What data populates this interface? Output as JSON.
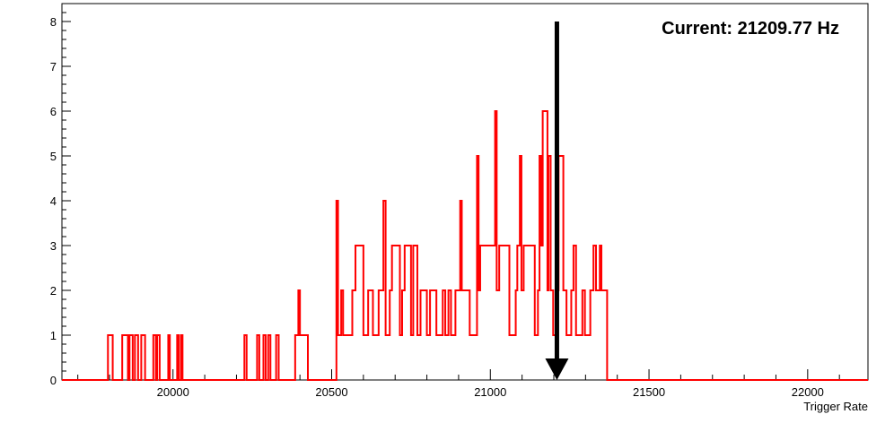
{
  "chart_data": {
    "type": "line",
    "title": "",
    "xlabel": "Trigger Rate",
    "ylabel": "",
    "xlim": [
      19650,
      22190
    ],
    "ylim": [
      0,
      8.4
    ],
    "x_ticks": [
      20000,
      20500,
      21000,
      21500,
      22000
    ],
    "y_ticks": [
      0,
      1,
      2,
      3,
      4,
      5,
      6,
      7,
      8
    ],
    "grid": false,
    "legend": "none",
    "series": [
      {
        "color": "#ff0000",
        "points": [
          [
            19650,
            0
          ],
          [
            19795,
            0
          ],
          [
            19795,
            1
          ],
          [
            19810,
            1
          ],
          [
            19810,
            0
          ],
          [
            19840,
            0
          ],
          [
            19840,
            1
          ],
          [
            19858,
            1
          ],
          [
            19858,
            0
          ],
          [
            19863,
            0
          ],
          [
            19863,
            1
          ],
          [
            19873,
            1
          ],
          [
            19873,
            0
          ],
          [
            19880,
            0
          ],
          [
            19880,
            1
          ],
          [
            19890,
            1
          ],
          [
            19890,
            0
          ],
          [
            19900,
            0
          ],
          [
            19900,
            1
          ],
          [
            19912,
            1
          ],
          [
            19912,
            0
          ],
          [
            19938,
            0
          ],
          [
            19938,
            1
          ],
          [
            19946,
            1
          ],
          [
            19946,
            0
          ],
          [
            19950,
            0
          ],
          [
            19950,
            1
          ],
          [
            19958,
            1
          ],
          [
            19958,
            0
          ],
          [
            19985,
            0
          ],
          [
            19985,
            1
          ],
          [
            19990,
            1
          ],
          [
            19990,
            0
          ],
          [
            20013,
            0
          ],
          [
            20013,
            1
          ],
          [
            20018,
            1
          ],
          [
            20018,
            0
          ],
          [
            20025,
            0
          ],
          [
            20025,
            1
          ],
          [
            20030,
            1
          ],
          [
            20030,
            0
          ],
          [
            20225,
            0
          ],
          [
            20225,
            1
          ],
          [
            20232,
            1
          ],
          [
            20232,
            0
          ],
          [
            20265,
            0
          ],
          [
            20265,
            1
          ],
          [
            20272,
            1
          ],
          [
            20272,
            0
          ],
          [
            20285,
            0
          ],
          [
            20285,
            1
          ],
          [
            20292,
            1
          ],
          [
            20292,
            0
          ],
          [
            20300,
            0
          ],
          [
            20300,
            1
          ],
          [
            20307,
            1
          ],
          [
            20307,
            0
          ],
          [
            20325,
            0
          ],
          [
            20325,
            1
          ],
          [
            20333,
            1
          ],
          [
            20333,
            0
          ],
          [
            20385,
            0
          ],
          [
            20385,
            1
          ],
          [
            20395,
            1
          ],
          [
            20395,
            2
          ],
          [
            20400,
            2
          ],
          [
            20400,
            1
          ],
          [
            20425,
            1
          ],
          [
            20425,
            0
          ],
          [
            20515,
            0
          ],
          [
            20515,
            4
          ],
          [
            20520,
            4
          ],
          [
            20520,
            1
          ],
          [
            20530,
            1
          ],
          [
            20530,
            2
          ],
          [
            20536,
            2
          ],
          [
            20536,
            1
          ],
          [
            20565,
            1
          ],
          [
            20565,
            2
          ],
          [
            20575,
            2
          ],
          [
            20575,
            3
          ],
          [
            20600,
            3
          ],
          [
            20600,
            1
          ],
          [
            20615,
            1
          ],
          [
            20615,
            2
          ],
          [
            20630,
            2
          ],
          [
            20630,
            1
          ],
          [
            20648,
            1
          ],
          [
            20648,
            2
          ],
          [
            20663,
            2
          ],
          [
            20663,
            4
          ],
          [
            20670,
            4
          ],
          [
            20670,
            1
          ],
          [
            20683,
            1
          ],
          [
            20683,
            2
          ],
          [
            20690,
            2
          ],
          [
            20690,
            3
          ],
          [
            20715,
            3
          ],
          [
            20715,
            1
          ],
          [
            20722,
            1
          ],
          [
            20722,
            2
          ],
          [
            20730,
            2
          ],
          [
            20730,
            3
          ],
          [
            20750,
            3
          ],
          [
            20750,
            1
          ],
          [
            20757,
            1
          ],
          [
            20757,
            3
          ],
          [
            20770,
            3
          ],
          [
            20770,
            1
          ],
          [
            20780,
            1
          ],
          [
            20780,
            2
          ],
          [
            20800,
            2
          ],
          [
            20800,
            1
          ],
          [
            20810,
            1
          ],
          [
            20810,
            2
          ],
          [
            20830,
            2
          ],
          [
            20830,
            1
          ],
          [
            20850,
            1
          ],
          [
            20850,
            2
          ],
          [
            20858,
            2
          ],
          [
            20858,
            1
          ],
          [
            20868,
            1
          ],
          [
            20868,
            2
          ],
          [
            20876,
            2
          ],
          [
            20876,
            1
          ],
          [
            20890,
            1
          ],
          [
            20890,
            2
          ],
          [
            20905,
            2
          ],
          [
            20905,
            4
          ],
          [
            20910,
            4
          ],
          [
            20910,
            2
          ],
          [
            20935,
            2
          ],
          [
            20935,
            1
          ],
          [
            20958,
            1
          ],
          [
            20958,
            5
          ],
          [
            20963,
            5
          ],
          [
            20963,
            2
          ],
          [
            20968,
            2
          ],
          [
            20968,
            3
          ],
          [
            21015,
            3
          ],
          [
            21015,
            6
          ],
          [
            21020,
            6
          ],
          [
            21020,
            2
          ],
          [
            21028,
            2
          ],
          [
            21028,
            3
          ],
          [
            21060,
            3
          ],
          [
            21060,
            1
          ],
          [
            21080,
            1
          ],
          [
            21080,
            2
          ],
          [
            21085,
            2
          ],
          [
            21085,
            3
          ],
          [
            21093,
            3
          ],
          [
            21093,
            5
          ],
          [
            21098,
            5
          ],
          [
            21098,
            2
          ],
          [
            21105,
            2
          ],
          [
            21105,
            3
          ],
          [
            21140,
            3
          ],
          [
            21140,
            1
          ],
          [
            21150,
            1
          ],
          [
            21150,
            2
          ],
          [
            21155,
            2
          ],
          [
            21155,
            5
          ],
          [
            21160,
            5
          ],
          [
            21160,
            3
          ],
          [
            21165,
            3
          ],
          [
            21165,
            6
          ],
          [
            21180,
            6
          ],
          [
            21180,
            2
          ],
          [
            21183,
            2
          ],
          [
            21183,
            5
          ],
          [
            21190,
            5
          ],
          [
            21190,
            2
          ],
          [
            21198,
            2
          ],
          [
            21198,
            1
          ],
          [
            21208,
            1
          ],
          [
            21208,
            2
          ],
          [
            21215,
            2
          ],
          [
            21215,
            5
          ],
          [
            21230,
            5
          ],
          [
            21230,
            2
          ],
          [
            21240,
            2
          ],
          [
            21240,
            1
          ],
          [
            21255,
            1
          ],
          [
            21255,
            2
          ],
          [
            21262,
            2
          ],
          [
            21262,
            3
          ],
          [
            21270,
            3
          ],
          [
            21270,
            1
          ],
          [
            21290,
            1
          ],
          [
            21290,
            2
          ],
          [
            21298,
            2
          ],
          [
            21298,
            1
          ],
          [
            21315,
            1
          ],
          [
            21315,
            2
          ],
          [
            21325,
            2
          ],
          [
            21325,
            3
          ],
          [
            21333,
            3
          ],
          [
            21333,
            2
          ],
          [
            21345,
            2
          ],
          [
            21345,
            3
          ],
          [
            21350,
            3
          ],
          [
            21350,
            2
          ],
          [
            21368,
            2
          ],
          [
            21368,
            0
          ],
          [
            22190,
            0
          ]
        ]
      }
    ],
    "annotations": [
      {
        "text": "Current: 21209.77 Hz",
        "position": "top-right"
      }
    ],
    "marker": {
      "x": 21209.77,
      "from_y": 8,
      "to_y": 0,
      "color": "#000000",
      "style": "arrow"
    }
  }
}
